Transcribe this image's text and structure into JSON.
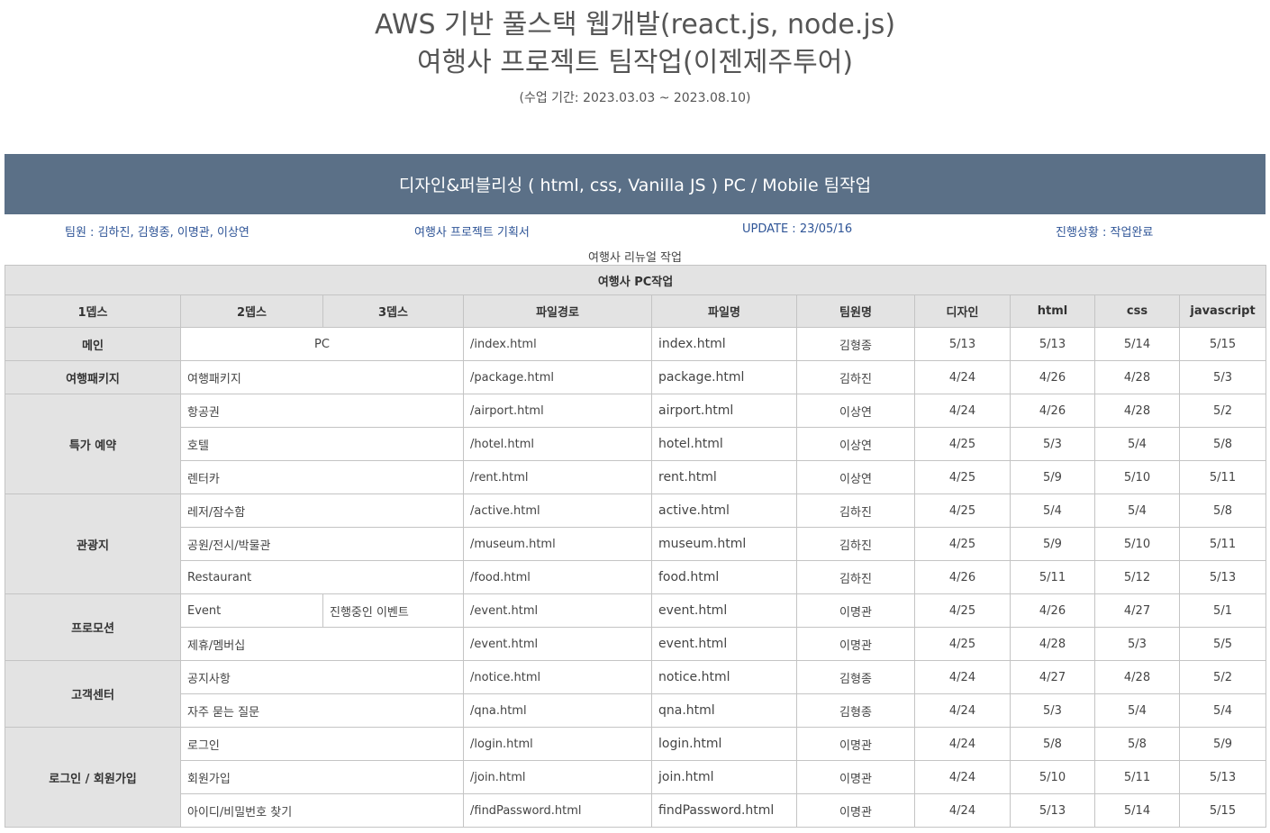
{
  "header": {
    "title_line1": "AWS 기반 풀스택 웹개발(react.js, node.js)",
    "title_line2": "여행사 프로젝트 팀작업(이젠제주투어)",
    "period": "(수업 기간: 2023.03.03 ~ 2023.08.10)"
  },
  "banner": "디자인&퍼블리싱 ( html, css, Vanilla JS ) PC / Mobile 팀작업",
  "info": {
    "members": "팀원 : 김하진, 김형종, 이명관, 이상연",
    "plan_link": "여행사 프로젝트 기획서",
    "update": "UPDATE : 23/05/16",
    "status": "진행상황 : 작업완료"
  },
  "caption": "여행사 리뉴얼 작업",
  "table": {
    "section_title": "여행사 PC작업",
    "headers": [
      "1뎁스",
      "2뎁스",
      "3뎁스",
      "파일경로",
      "파일명",
      "팀원명",
      "디자인",
      "html",
      "css",
      "javascript"
    ],
    "groups": [
      {
        "depth1": "메인",
        "rows": [
          {
            "depth2": "PC",
            "depth3": "",
            "path": "/index.html",
            "file": "index.html",
            "member": "김형종",
            "design": "5/13",
            "html": "5/13",
            "css": "5/14",
            "js": "5/15"
          }
        ]
      },
      {
        "depth1": "여행패키지",
        "rows": [
          {
            "depth2": "여행패키지",
            "depth3": "",
            "path": "/package.html",
            "file": "package.html",
            "member": "김하진",
            "design": "4/24",
            "html": "4/26",
            "css": "4/28",
            "js": "5/3"
          }
        ]
      },
      {
        "depth1": "특가 예약",
        "rows": [
          {
            "depth2": "항공권",
            "depth3": "",
            "path": "/airport.html",
            "file": "airport.html",
            "member": "이상연",
            "design": "4/24",
            "html": "4/26",
            "css": "4/28",
            "js": "5/2"
          },
          {
            "depth2": "호텔",
            "depth3": "",
            "path": "/hotel.html",
            "file": "hotel.html",
            "member": "이상연",
            "design": "4/25",
            "html": "5/3",
            "css": "5/4",
            "js": "5/8"
          },
          {
            "depth2": "렌터카",
            "depth3": "",
            "path": "/rent.html",
            "file": "rent.html",
            "member": "이상연",
            "design": "4/25",
            "html": "5/9",
            "css": "5/10",
            "js": "5/11"
          }
        ]
      },
      {
        "depth1": "관광지",
        "rows": [
          {
            "depth2": "레저/잠수함",
            "depth3": "",
            "path": "/active.html",
            "file": "active.html",
            "member": "김하진",
            "design": "4/25",
            "html": "5/4",
            "css": "5/4",
            "js": "5/8"
          },
          {
            "depth2": "공원/전시/박물관",
            "depth3": "",
            "path": "/museum.html",
            "file": "museum.html",
            "member": "김하진",
            "design": "4/25",
            "html": "5/9",
            "css": "5/10",
            "js": "5/11"
          },
          {
            "depth2": "Restaurant",
            "depth3": "",
            "path": "/food.html",
            "file": "food.html",
            "member": "김하진",
            "design": "4/26",
            "html": "5/11",
            "css": "5/12",
            "js": "5/13"
          }
        ]
      },
      {
        "depth1": "프로모션",
        "rows": [
          {
            "depth2": "Event",
            "depth3": "진행중인 이벤트",
            "path": "/event.html",
            "file": "event.html",
            "member": "이명관",
            "design": "4/25",
            "html": "4/26",
            "css": "4/27",
            "js": "5/1"
          },
          {
            "depth2": "제휴/멤버십",
            "depth3": "",
            "path": "/event.html",
            "file": "event.html",
            "member": "이명관",
            "design": "4/25",
            "html": "4/28",
            "css": "5/3",
            "js": "5/5"
          }
        ]
      },
      {
        "depth1": "고객센터",
        "rows": [
          {
            "depth2": "공지사항",
            "depth3": "",
            "path": "/notice.html",
            "file": "notice.html",
            "member": "김형종",
            "design": "4/24",
            "html": "4/27",
            "css": "4/28",
            "js": "5/2"
          },
          {
            "depth2": "자주 묻는 질문",
            "depth3": "",
            "path": "/qna.html",
            "file": "qna.html",
            "member": "김형종",
            "design": "4/24",
            "html": "5/3",
            "css": "5/4",
            "js": "5/4"
          }
        ]
      },
      {
        "depth1": "로그인 / 회원가입",
        "rows": [
          {
            "depth2": "로그인",
            "depth3": "",
            "path": "/login.html",
            "file": "login.html",
            "member": "이명관",
            "design": "4/24",
            "html": "5/8",
            "css": "5/8",
            "js": "5/9"
          },
          {
            "depth2": "회원가입",
            "depth3": "",
            "path": "/join.html",
            "file": "join.html",
            "member": "이명관",
            "design": "4/24",
            "html": "5/10",
            "css": "5/11",
            "js": "5/13"
          },
          {
            "depth2": "아이디/비밀번호 찾기",
            "depth3": "",
            "path": "/findPassword.html",
            "file": "findPassword.html",
            "member": "이명관",
            "design": "4/24",
            "html": "5/13",
            "css": "5/14",
            "js": "5/15"
          }
        ]
      }
    ]
  }
}
